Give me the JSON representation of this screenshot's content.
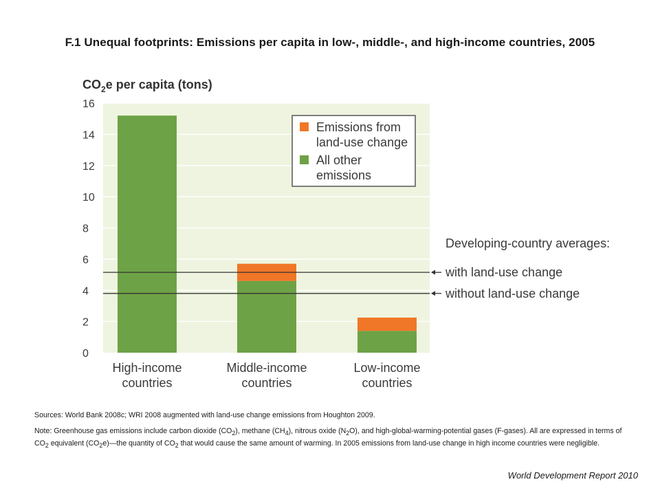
{
  "header": {
    "title": "F.1 Unequal footprints: Emissions per capita in low-, middle-, and high-income countries, 2005"
  },
  "chart_data": {
    "type": "bar",
    "stacked": true,
    "ylabel": {
      "main": "CO",
      "sub": "2",
      "rest": "e per capita (tons)"
    },
    "ylim": [
      0,
      16
    ],
    "yticks": [
      0,
      2,
      4,
      6,
      8,
      10,
      12,
      14,
      16
    ],
    "grid": true,
    "categories": [
      [
        "High-income",
        "countries"
      ],
      [
        "Middle-income",
        "countries"
      ],
      [
        "Low-income",
        "countries"
      ]
    ],
    "series": [
      {
        "name": "All other emissions",
        "color": "#6ea246",
        "values": [
          15.2,
          4.6,
          1.4
        ]
      },
      {
        "name": "Emissions from land-use change",
        "color": "#f07727",
        "values": [
          0,
          1.1,
          0.85
        ]
      }
    ],
    "legend": {
      "position": "top-right",
      "items": [
        {
          "lines": [
            "Emissions from",
            "land-use change"
          ],
          "color": "#f07727"
        },
        {
          "lines": [
            "All other",
            "emissions"
          ],
          "color": "#6ea246"
        }
      ]
    },
    "reference_lines": [
      {
        "label": "with land-use change",
        "value": 5.15
      },
      {
        "label": "without land-use change",
        "value": 3.8
      }
    ],
    "reference_header": "Developing-country averages:",
    "colors": {
      "plot_bg": "#eef4df",
      "grid": "#ffffff",
      "line": "#333333"
    }
  },
  "sources": "Sources: World Bank 2008c; WRI 2008 augmented with land-use change emissions from Houghton 2009.",
  "note": {
    "p1": "Note: Greenhouse gas emissions include carbon dioxide (CO",
    "s1": "2",
    "p2": "), methane (CH",
    "s2": "4",
    "p3": "), nitrous oxide (N",
    "s3": "2",
    "p4": "O), and high-global-warming-potential gases (F-gases). All are expressed in terms of CO",
    "s4": "2",
    "p5": " equivalent (CO",
    "s5": "2",
    "p6": "e)—the quantity of CO",
    "s6": "2",
    "p7": " that would cause the same amount of warming. In 2005 emissions from land-use change in high income countries were negligible."
  },
  "credit": "World Development Report 2010"
}
